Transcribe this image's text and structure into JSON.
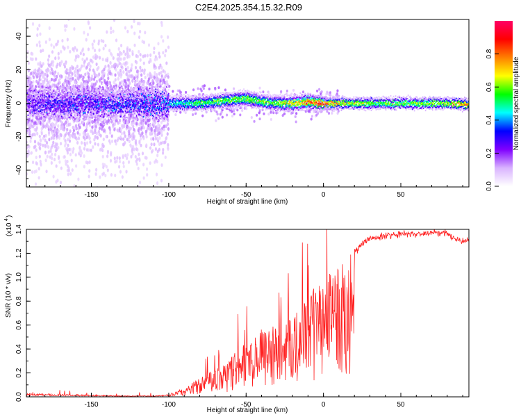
{
  "title": "C2E4.2025.354.15.32.R09",
  "chart_data": [
    {
      "type": "heatmap",
      "xlabel": "Height of straight line (km)",
      "ylabel": "Frequency (Hz)",
      "xlim": [
        -192,
        94
      ],
      "ylim": [
        -50,
        50
      ],
      "xticks": [
        "-150",
        "-100",
        "-50",
        "0",
        "50"
      ],
      "yticks": [
        "-40",
        "-20",
        "0",
        "20",
        "40"
      ],
      "colorbar": {
        "label": "Normalized spectral amplitude",
        "range": [
          0,
          1
        ],
        "ticks": [
          "0.0",
          "0.2",
          "0.4",
          "0.6",
          "0.8"
        ],
        "colors": [
          "#ffffff",
          "#d9b3ff",
          "#8000ff",
          "#0000ff",
          "#00ffff",
          "#00ff00",
          "#ffff00",
          "#ff8000",
          "#ff0000",
          "#ff0066"
        ]
      },
      "ridge": {
        "x": [
          -192,
          -150,
          -100,
          -80,
          -60,
          -50,
          -40,
          -30,
          -20,
          -10,
          0,
          10,
          20,
          40,
          60,
          80,
          94
        ],
        "frequency": [
          0,
          0,
          0,
          0,
          2,
          3,
          1,
          0,
          0,
          1,
          0,
          0,
          0,
          0,
          0,
          0,
          -1
        ],
        "amplitude": [
          0.35,
          0.4,
          0.45,
          0.55,
          0.6,
          0.6,
          0.6,
          0.6,
          0.7,
          0.8,
          0.85,
          0.7,
          0.65,
          0.6,
          0.6,
          0.65,
          0.8
        ]
      }
    },
    {
      "type": "line",
      "xlabel": "Height of straight line (km)",
      "ylabel": "SNR (10 * v/v)",
      "yscale_label": "(x10",
      "yscale_exp": "4",
      "xlim": [
        -192,
        94
      ],
      "ylim": [
        0,
        1.4
      ],
      "xticks": [
        "-150",
        "-100",
        "-50",
        "0",
        "50"
      ],
      "yticks": [
        "0.0",
        "0.2",
        "0.4",
        "0.6",
        "0.8",
        "1.0",
        "1.2",
        "1.4"
      ],
      "color": "#ff2020",
      "envelope": {
        "x": [
          -192,
          -160,
          -130,
          -110,
          -100,
          -95,
          -90,
          -85,
          -80,
          -70,
          -60,
          -55,
          -50,
          -45,
          -40,
          -35,
          -30,
          -25,
          -20,
          -15,
          -10,
          -5,
          0,
          5,
          10,
          15,
          20,
          25,
          30,
          40,
          50,
          60,
          70,
          80,
          85,
          90,
          94
        ],
        "y": [
          0.03,
          0.02,
          0.01,
          0.01,
          0.02,
          0.04,
          0.07,
          0.1,
          0.14,
          0.2,
          0.28,
          0.35,
          0.4,
          0.42,
          0.5,
          0.48,
          0.55,
          0.55,
          0.62,
          0.65,
          0.75,
          0.8,
          0.88,
          0.9,
          0.95,
          1.05,
          1.2,
          1.28,
          1.32,
          1.35,
          1.36,
          1.36,
          1.37,
          1.37,
          1.32,
          1.3,
          1.32
        ]
      }
    }
  ]
}
